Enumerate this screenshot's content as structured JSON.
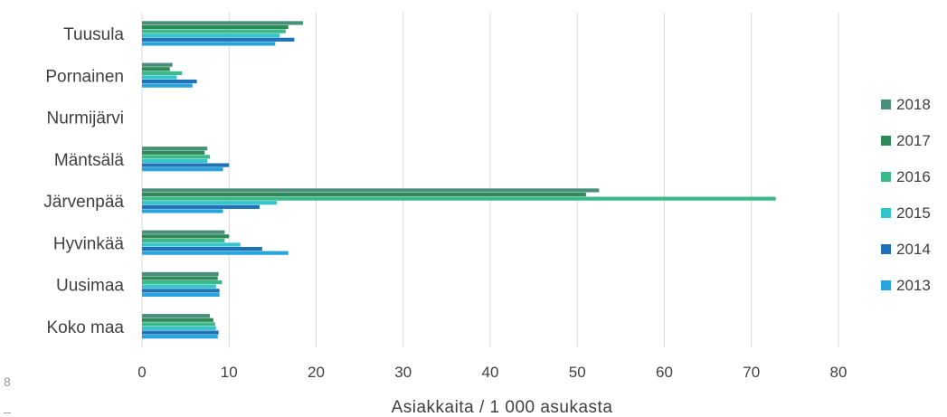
{
  "chart_data": {
    "type": "bar",
    "orientation": "horizontal",
    "title": "",
    "xlabel": "Asiakkaita / 1 000 asukasta",
    "ylabel": "",
    "xlim": [
      0,
      80
    ],
    "xticks": [
      0,
      10,
      20,
      30,
      40,
      50,
      60,
      70,
      80
    ],
    "grid": true,
    "legend_position": "right",
    "categories": [
      "Tuusula",
      "Pornainen",
      "Nurmijärvi",
      "Mäntsälä",
      "Järvenpää",
      "Hyvinkää",
      "Uusimaa",
      "Koko maa"
    ],
    "series": [
      {
        "name": "2018",
        "color": "#4a8f7b",
        "values": [
          18.5,
          3.5,
          null,
          7.5,
          52.5,
          9.5,
          8.8,
          7.8
        ]
      },
      {
        "name": "2017",
        "color": "#2e8b57",
        "values": [
          16.8,
          3.2,
          null,
          7.2,
          51.0,
          10.0,
          8.7,
          8.2
        ]
      },
      {
        "name": "2016",
        "color": "#3cb98a",
        "values": [
          16.5,
          4.6,
          null,
          7.8,
          72.8,
          9.5,
          9.2,
          8.4
        ]
      },
      {
        "name": "2015",
        "color": "#33c4cc",
        "values": [
          15.8,
          4.0,
          null,
          7.5,
          15.5,
          11.3,
          8.5,
          8.5
        ]
      },
      {
        "name": "2014",
        "color": "#1f72b8",
        "values": [
          17.5,
          6.3,
          null,
          10.0,
          13.5,
          13.8,
          8.9,
          8.8
        ]
      },
      {
        "name": "2013",
        "color": "#27a4db",
        "values": [
          15.3,
          5.8,
          null,
          9.3,
          9.3,
          16.8,
          8.9,
          8.7
        ]
      }
    ]
  },
  "edge_fragments": [
    "8",
    "–"
  ]
}
